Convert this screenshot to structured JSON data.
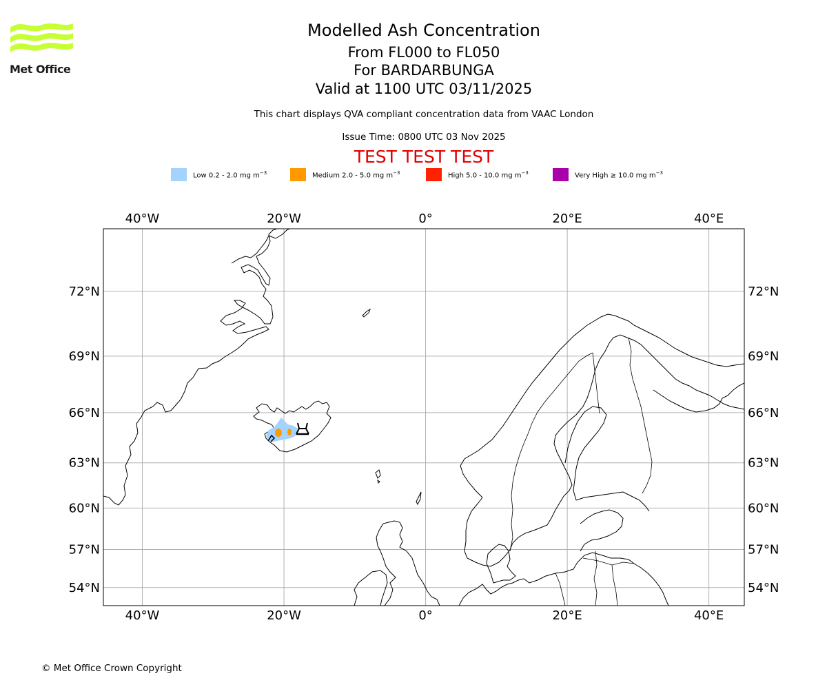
{
  "logo": {
    "name": "Met Office",
    "color": "#c6ff33"
  },
  "header": {
    "title": "Modelled Ash Concentration",
    "levels": "From FL000 to FL050",
    "volcano": "For BARDARBUNGA",
    "valid": "Valid at 1100 UTC 03/11/2025",
    "description": "This chart displays QVA compliant concentration data from VAAC London",
    "issue_time": "Issue Time: 0800 UTC 03 Nov 2025",
    "test_banner": "TEST TEST TEST",
    "test_color": "#e00000"
  },
  "legend": [
    {
      "label": "Low 0.2 - 2.0 mg m",
      "unit_exp": "−3",
      "color": "#a3d4ff"
    },
    {
      "label": "Medium 2.0 - 5.0 mg m",
      "unit_exp": "−3",
      "color": "#ff9900"
    },
    {
      "label": "High 5.0 - 10.0 mg m",
      "unit_exp": "−3",
      "color": "#ff2200"
    },
    {
      "label": "Very High ≥ 10.0 mg m",
      "unit_exp": "−3",
      "color": "#aa00aa"
    }
  ],
  "map": {
    "projection": "Mercator",
    "lon_range": [
      -45.5,
      45
    ],
    "lat_range": [
      52.5,
      74.5
    ],
    "gridlines": true,
    "lon_ticks": [
      {
        "value": -40,
        "label": "40°W"
      },
      {
        "value": -20,
        "label": "20°W"
      },
      {
        "value": 0,
        "label": "0°"
      },
      {
        "value": 20,
        "label": "20°E"
      },
      {
        "value": 40,
        "label": "40°E"
      }
    ],
    "lat_ticks": [
      {
        "value": 72,
        "label": "72°N"
      },
      {
        "value": 69,
        "label": "69°N"
      },
      {
        "value": 66,
        "label": "66°N"
      },
      {
        "value": 63,
        "label": "63°N"
      },
      {
        "value": 60,
        "label": "60°N"
      },
      {
        "value": 57,
        "label": "57°N"
      },
      {
        "value": 54,
        "label": "54°N"
      }
    ],
    "ash_low_color": "#a3d4ff",
    "ash_medium_color": "#ff9900",
    "volcano_marker_symbol": "volcano-icon"
  },
  "footer": {
    "copyright": "© Met Office Crown Copyright"
  }
}
